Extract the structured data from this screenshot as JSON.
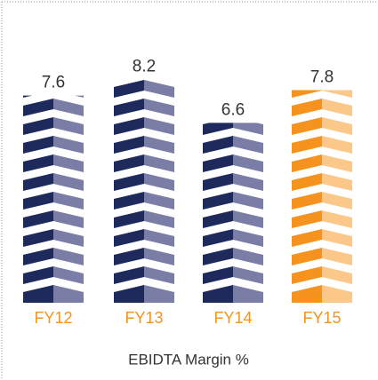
{
  "chart_data": {
    "type": "pictorial-bar",
    "title": "EBIDTA Margin %",
    "categories": [
      "FY12",
      "FY13",
      "FY14",
      "FY15"
    ],
    "values": [
      7.6,
      8.2,
      6.6,
      7.8
    ],
    "colors": [
      "#1e2a5c",
      "#1e2a5c",
      "#1e2a5c",
      "#f5931e"
    ],
    "light_colors": [
      "#7a7ea6",
      "#7a7ea6",
      "#7a7ea6",
      "#fcc88a"
    ],
    "category_label_color": "#f5931e"
  }
}
